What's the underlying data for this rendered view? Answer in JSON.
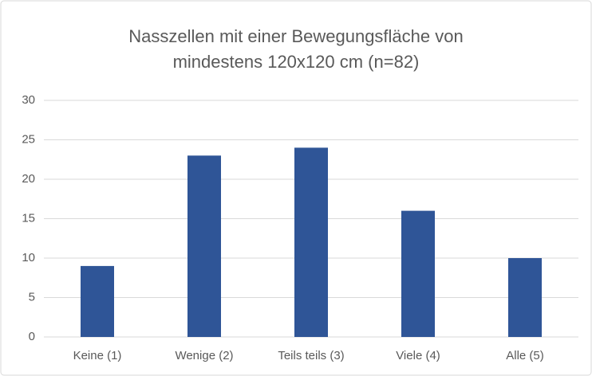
{
  "chart_data": {
    "type": "bar",
    "title": "Nasszellen mit einer Bewegungsfläche von mindestens 120x120 cm (n=82)",
    "categories": [
      "Keine (1)",
      "Wenige (2)",
      "Teils teils (3)",
      "Viele (4)",
      "Alle (5)"
    ],
    "values": [
      9,
      23,
      24,
      16,
      10
    ],
    "color": "#2f5597",
    "ylim": [
      0,
      30
    ],
    "yticks": [
      0,
      5,
      10,
      15,
      20,
      25,
      30
    ],
    "grid": true
  }
}
